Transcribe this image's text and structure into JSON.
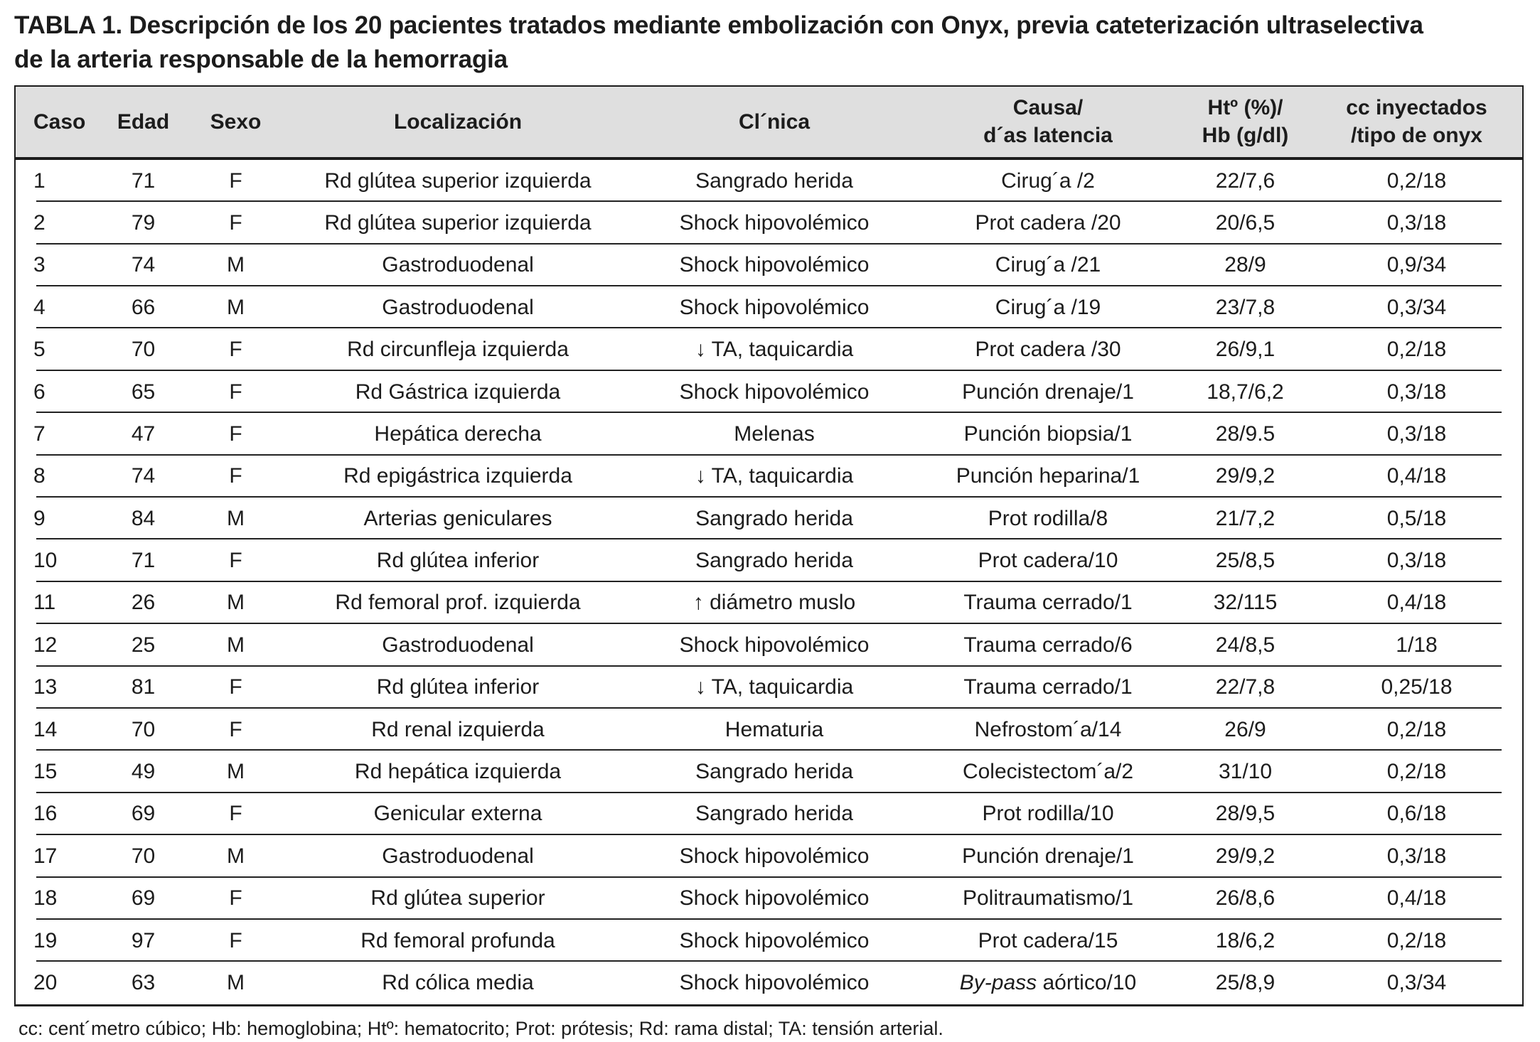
{
  "title": "TABLA 1. Descripción de los 20 pacientes tratados mediante embolización con Onyx, previa cateterización ultraselectiva\nde la arteria responsable de la hemorragia",
  "table": {
    "columns": [
      {
        "key": "caso",
        "label": "Caso"
      },
      {
        "key": "edad",
        "label": "Edad"
      },
      {
        "key": "sexo",
        "label": "Sexo"
      },
      {
        "key": "localizacion",
        "label": "Localización"
      },
      {
        "key": "clinica",
        "label": "Cl´nica"
      },
      {
        "key": "causa-dias-latencia",
        "label": "Causa/\nd´as latencia"
      },
      {
        "key": "ht-hb",
        "label": "Htº (%)/\nHb (g/dl)"
      },
      {
        "key": "cc-inyectados-tipo-onyx",
        "label": "cc inyectados\n/tipo de onyx"
      }
    ],
    "rows": [
      [
        "1",
        "71",
        "F",
        "Rd glútea superior izquierda",
        "Sangrado herida",
        "Cirug´a /2",
        "22/7,6",
        "0,2/18"
      ],
      [
        "2",
        "79",
        "F",
        "Rd glútea superior izquierda",
        "Shock hipovolémico",
        "Prot cadera /20",
        "20/6,5",
        "0,3/18"
      ],
      [
        "3",
        "74",
        "M",
        "Gastroduodenal",
        "Shock hipovolémico",
        "Cirug´a /21",
        "28/9",
        "0,9/34"
      ],
      [
        "4",
        "66",
        "M",
        "Gastroduodenal",
        "Shock hipovolémico",
        "Cirug´a /19",
        "23/7,8",
        "0,3/34"
      ],
      [
        "5",
        "70",
        "F",
        "Rd circunfleja izquierda",
        "↓ TA, taquicardia",
        "Prot cadera /30",
        "26/9,1",
        "0,2/18"
      ],
      [
        "6",
        "65",
        "F",
        "Rd Gástrica izquierda",
        "Shock hipovolémico",
        "Punción drenaje/1",
        "18,7/6,2",
        "0,3/18"
      ],
      [
        "7",
        "47",
        "F",
        "Hepática derecha",
        "Melenas",
        "Punción biopsia/1",
        "28/9.5",
        "0,3/18"
      ],
      [
        "8",
        "74",
        "F",
        "Rd epigástrica izquierda",
        "↓ TA, taquicardia",
        "Punción heparina/1",
        "29/9,2",
        "0,4/18"
      ],
      [
        "9",
        "84",
        "M",
        "Arterias geniculares",
        "Sangrado herida",
        "Prot rodilla/8",
        "21/7,2",
        "0,5/18"
      ],
      [
        "10",
        "71",
        "F",
        "Rd glútea inferior",
        "Sangrado herida",
        "Prot cadera/10",
        "25/8,5",
        "0,3/18"
      ],
      [
        "11",
        "26",
        "M",
        "Rd femoral prof. izquierda",
        "↑ diámetro muslo",
        "Trauma cerrado/1",
        "32/115",
        "0,4/18"
      ],
      [
        "12",
        "25",
        "M",
        "Gastroduodenal",
        "Shock hipovolémico",
        "Trauma cerrado/6",
        "24/8,5",
        "1/18"
      ],
      [
        "13",
        "81",
        "F",
        "Rd glútea inferior",
        "↓ TA, taquicardia",
        "Trauma cerrado/1",
        "22/7,8",
        "0,25/18"
      ],
      [
        "14",
        "70",
        "F",
        "Rd renal izquierda",
        "Hematuria",
        "Nefrostom´a/14",
        "26/9",
        "0,2/18"
      ],
      [
        "15",
        "49",
        "M",
        "Rd hepática izquierda",
        "Sangrado herida",
        "Colecistectom´a/2",
        "31/10",
        "0,2/18"
      ],
      [
        "16",
        "69",
        "F",
        "Genicular externa",
        "Sangrado herida",
        "Prot rodilla/10",
        "28/9,5",
        "0,6/18"
      ],
      [
        "17",
        "70",
        "M",
        "Gastroduodenal",
        "Shock hipovolémico",
        "Punción drenaje/1",
        "29/9,2",
        "0,3/18"
      ],
      [
        "18",
        "69",
        "F",
        "Rd glútea superior",
        "Shock hipovolémico",
        "Politraumatismo/1",
        "26/8,6",
        "0,4/18"
      ],
      [
        "19",
        "97",
        "F",
        "Rd femoral profunda",
        "Shock hipovolémico",
        "Prot cadera/15",
        "18/6,2",
        "0,2/18"
      ],
      [
        "20",
        "63",
        "M",
        "Rd cólica media",
        "Shock hipovolémico",
        "By-pass aórtico/10",
        "25/8,9",
        "0,3/34"
      ]
    ]
  },
  "footnote": "cc: cent´metro cúbico; Hb: hemoglobina; Htº: hematocrito; Prot: prótesis; Rd: rama distal; TA: tensión arterial.",
  "italic_terms": [
    "By-pass"
  ],
  "colors": {
    "header_bg": "#dfdfdf",
    "text": "#1c1c1c",
    "border": "#1c1c1c"
  }
}
